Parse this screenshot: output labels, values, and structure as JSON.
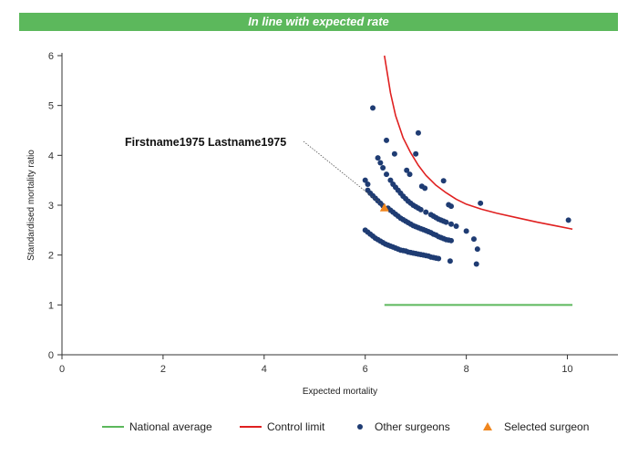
{
  "banner": {
    "text": "In line with expected rate"
  },
  "chart_data": {
    "type": "scatter",
    "title": "",
    "xlabel": "Expected mortality",
    "ylabel": "Standardised mortality ratio",
    "xlim": [
      0,
      11
    ],
    "ylim": [
      0,
      6
    ],
    "xticks": [
      0,
      2,
      4,
      6,
      8,
      10
    ],
    "yticks": [
      0,
      1,
      2,
      3,
      4,
      5,
      6
    ],
    "grid": false,
    "legend_position": "bottom",
    "colors": {
      "national_average": "#5cb85c",
      "control_limit": "#e02020",
      "other_surgeons": "#1f3c73",
      "selected_surgeon": "#f0861e",
      "banner": "#5cb85c"
    },
    "legend": [
      "National average",
      "Control limit",
      "Other surgeons",
      "Selected surgeon"
    ],
    "annotation": {
      "text": "Firstname1975 Lastname1975",
      "target": [
        6.38,
        2.95
      ]
    },
    "national_average": {
      "name": "National average",
      "x": [
        6.38,
        10.1
      ],
      "y": [
        1.0,
        1.0
      ]
    },
    "control_limit": {
      "name": "Control limit",
      "x": [
        6.38,
        6.5,
        6.6,
        6.75,
        6.9,
        7.05,
        7.2,
        7.4,
        7.6,
        7.8,
        8.0,
        8.3,
        8.6,
        9.0,
        9.4,
        9.8,
        10.1
      ],
      "y": [
        6.0,
        5.25,
        4.8,
        4.35,
        4.05,
        3.8,
        3.6,
        3.4,
        3.25,
        3.12,
        3.02,
        2.92,
        2.84,
        2.75,
        2.66,
        2.58,
        2.52
      ]
    },
    "other_surgeons": {
      "name": "Other surgeons",
      "points": [
        [
          6.0,
          2.5
        ],
        [
          6.05,
          2.46
        ],
        [
          6.1,
          2.42
        ],
        [
          6.15,
          2.38
        ],
        [
          6.2,
          2.34
        ],
        [
          6.25,
          2.31
        ],
        [
          6.3,
          2.28
        ],
        [
          6.35,
          2.25
        ],
        [
          6.4,
          2.22
        ],
        [
          6.45,
          2.2
        ],
        [
          6.5,
          2.18
        ],
        [
          6.55,
          2.16
        ],
        [
          6.6,
          2.14
        ],
        [
          6.65,
          2.12
        ],
        [
          6.7,
          2.1
        ],
        [
          6.75,
          2.09
        ],
        [
          6.8,
          2.08
        ],
        [
          6.85,
          2.06
        ],
        [
          6.9,
          2.05
        ],
        [
          6.95,
          2.04
        ],
        [
          7.0,
          2.03
        ],
        [
          7.05,
          2.02
        ],
        [
          7.1,
          2.01
        ],
        [
          7.15,
          2.0
        ],
        [
          7.2,
          1.99
        ],
        [
          7.25,
          1.98
        ],
        [
          7.3,
          1.96
        ],
        [
          7.35,
          1.95
        ],
        [
          7.4,
          1.94
        ],
        [
          7.45,
          1.93
        ],
        [
          6.05,
          3.3
        ],
        [
          6.1,
          3.24
        ],
        [
          6.15,
          3.19
        ],
        [
          6.2,
          3.14
        ],
        [
          6.25,
          3.09
        ],
        [
          6.3,
          3.04
        ],
        [
          6.35,
          2.99
        ],
        [
          6.45,
          2.94
        ],
        [
          6.5,
          2.9
        ],
        [
          6.55,
          2.86
        ],
        [
          6.6,
          2.82
        ],
        [
          6.65,
          2.78
        ],
        [
          6.7,
          2.74
        ],
        [
          6.75,
          2.71
        ],
        [
          6.8,
          2.68
        ],
        [
          6.85,
          2.65
        ],
        [
          6.9,
          2.62
        ],
        [
          6.95,
          2.59
        ],
        [
          7.0,
          2.57
        ],
        [
          7.05,
          2.55
        ],
        [
          7.1,
          2.53
        ],
        [
          7.15,
          2.51
        ],
        [
          7.2,
          2.49
        ],
        [
          7.25,
          2.47
        ],
        [
          7.3,
          2.45
        ],
        [
          7.35,
          2.42
        ],
        [
          7.4,
          2.4
        ],
        [
          7.45,
          2.37
        ],
        [
          7.5,
          2.35
        ],
        [
          7.55,
          2.33
        ],
        [
          7.6,
          2.31
        ],
        [
          7.65,
          2.3
        ],
        [
          7.7,
          2.29
        ],
        [
          6.0,
          3.5
        ],
        [
          6.05,
          3.42
        ],
        [
          6.25,
          3.95
        ],
        [
          6.3,
          3.85
        ],
        [
          6.35,
          3.75
        ],
        [
          6.42,
          3.62
        ],
        [
          6.5,
          3.5
        ],
        [
          6.55,
          3.42
        ],
        [
          6.6,
          3.36
        ],
        [
          6.65,
          3.3
        ],
        [
          6.7,
          3.24
        ],
        [
          6.75,
          3.18
        ],
        [
          6.8,
          3.13
        ],
        [
          6.85,
          3.08
        ],
        [
          6.9,
          3.04
        ],
        [
          6.95,
          3.0
        ],
        [
          7.0,
          2.97
        ],
        [
          7.05,
          2.94
        ],
        [
          7.1,
          2.91
        ],
        [
          7.2,
          2.86
        ],
        [
          7.3,
          2.81
        ],
        [
          7.35,
          2.78
        ],
        [
          7.4,
          2.75
        ],
        [
          7.45,
          2.72
        ],
        [
          7.5,
          2.7
        ],
        [
          7.55,
          2.68
        ],
        [
          7.6,
          2.66
        ],
        [
          7.7,
          2.62
        ],
        [
          7.8,
          2.58
        ],
        [
          6.15,
          4.95
        ],
        [
          6.42,
          4.3
        ],
        [
          6.58,
          4.03
        ],
        [
          6.82,
          3.7
        ],
        [
          6.88,
          3.62
        ],
        [
          7.0,
          4.03
        ],
        [
          7.05,
          4.45
        ],
        [
          7.12,
          3.38
        ],
        [
          7.18,
          3.34
        ],
        [
          7.55,
          3.49
        ],
        [
          7.65,
          3.01
        ],
        [
          7.7,
          2.98
        ],
        [
          8.0,
          2.48
        ],
        [
          8.15,
          2.32
        ],
        [
          8.22,
          2.12
        ],
        [
          7.68,
          1.88
        ],
        [
          8.2,
          1.82
        ],
        [
          8.28,
          3.04
        ],
        [
          10.02,
          2.7
        ]
      ]
    },
    "selected_surgeon": {
      "name": "Selected surgeon",
      "x": 6.38,
      "y": 2.95
    }
  }
}
